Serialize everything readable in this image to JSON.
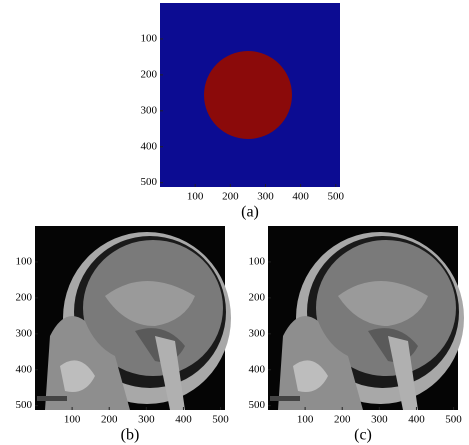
{
  "figure": {
    "panels": [
      {
        "caption": "(a)",
        "xlim": [
          0,
          512
        ],
        "ylim": [
          0,
          512
        ],
        "xticks": [
          100,
          200,
          300,
          400,
          500
        ],
        "yticks": [
          100,
          200,
          300,
          400,
          500
        ]
      },
      {
        "caption": "(b)",
        "xlim": [
          0,
          512
        ],
        "ylim": [
          0,
          512
        ],
        "xticks": [
          100,
          200,
          300,
          400,
          500
        ],
        "yticks": [
          100,
          200,
          300,
          400,
          500
        ]
      },
      {
        "caption": "(c)",
        "xlim": [
          0,
          512
        ],
        "ylim": [
          0,
          512
        ],
        "xticks": [
          100,
          200,
          300,
          400,
          500
        ],
        "yticks": [
          100,
          200,
          300,
          400,
          500
        ]
      }
    ]
  }
}
